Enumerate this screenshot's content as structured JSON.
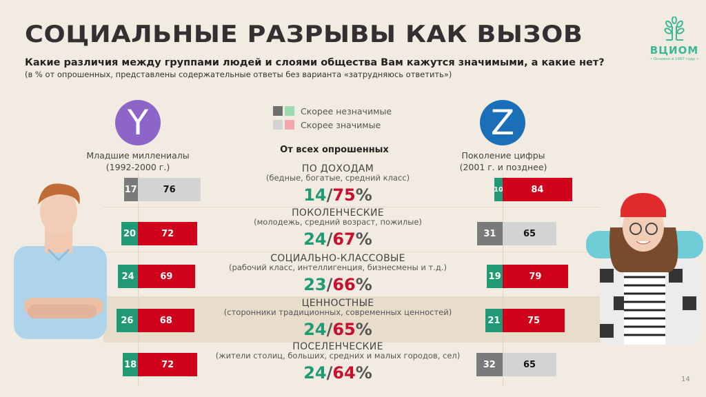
{
  "header": {
    "title": "СОЦИАЛЬНЫЕ РАЗРЫВЫ КАК ВЫЗОВ",
    "question": "Какие различия между группами людей и слоями общества Вам кажутся значимыми, а какие нет?",
    "note": "(в % от опрошенных, представлены содержательные ответы без варианта «затрудняюсь ответить»)"
  },
  "logo": {
    "name": "ВЦИОМ",
    "subtitle": "• Основан в 1987 году •",
    "icon": "tree-icon"
  },
  "legend": {
    "items": [
      {
        "label": "Скорее незначимые",
        "colors": [
          "#6e6e6e",
          "#9fd9b0"
        ]
      },
      {
        "label": "Скорее значимые",
        "colors": [
          "#d3d3d3",
          "#f4a6ad"
        ]
      }
    ]
  },
  "generations": {
    "y": {
      "letter": "Y",
      "color": "#8d65c9",
      "label_line1": "Младшие миллениалы",
      "label_line2": "(1992-2000 г.)"
    },
    "z": {
      "letter": "Z",
      "color": "#1a6fb8",
      "label_line1": "Поколение цифры",
      "label_line2": "(2001 г. и позднее)"
    }
  },
  "colors": {
    "green": "#1f9a74",
    "red": "#d0021b",
    "dark_gray": "#7a7a7a",
    "light_gray": "#d3d3d3"
  },
  "page_number": "14",
  "chart_data": {
    "type": "bar",
    "title": "СОЦИАЛЬНЫЕ РАЗРЫВЫ КАК ВЫЗОВ",
    "overall_label": "От всех опрошенных",
    "unit": "%",
    "categories": [
      {
        "name": "ПО ДОХОДАМ",
        "desc": "(бедные, богатые, средний класс)"
      },
      {
        "name": "ПОКОЛЕНЧЕСКИЕ",
        "desc": "(молодежь, средний возраст, пожилые)"
      },
      {
        "name": "СОЦИАЛЬНО-КЛАССОВЫЕ",
        "desc": "(рабочий класс, интеллигенция, бизнесмены и т.д.)"
      },
      {
        "name": "ЦЕННОСТНЫЕ",
        "desc": "(сторонники традиционных, современных ценностей)"
      },
      {
        "name": "ПОСЕЛЕНЧЕСКИЕ",
        "desc": "(жители столиц, больших, средних и малых городов, сел)"
      }
    ],
    "series": [
      {
        "name": "Все опрошенные — скорее незначимые",
        "values": [
          14,
          24,
          23,
          24,
          24
        ]
      },
      {
        "name": "Все опрошенные — скорее значимые",
        "values": [
          75,
          67,
          66,
          65,
          64
        ]
      },
      {
        "name": "Y — скорее незначимые",
        "values": [
          17,
          20,
          24,
          26,
          18
        ]
      },
      {
        "name": "Y — скорее значимые",
        "values": [
          76,
          72,
          69,
          68,
          72
        ]
      },
      {
        "name": "Z — скорее незначимые",
        "values": [
          10,
          31,
          19,
          21,
          32
        ]
      },
      {
        "name": "Z — скорее значимые",
        "values": [
          84,
          65,
          79,
          75,
          65
        ]
      }
    ],
    "y_highlight": [
      true,
      false,
      false,
      false,
      false
    ],
    "z_highlight": [
      false,
      true,
      false,
      false,
      true
    ],
    "highlight_meaning": "gray = difference from overall not marked; colored = notable difference",
    "highlighted_row": "ЦЕННОСТНЫЕ"
  }
}
